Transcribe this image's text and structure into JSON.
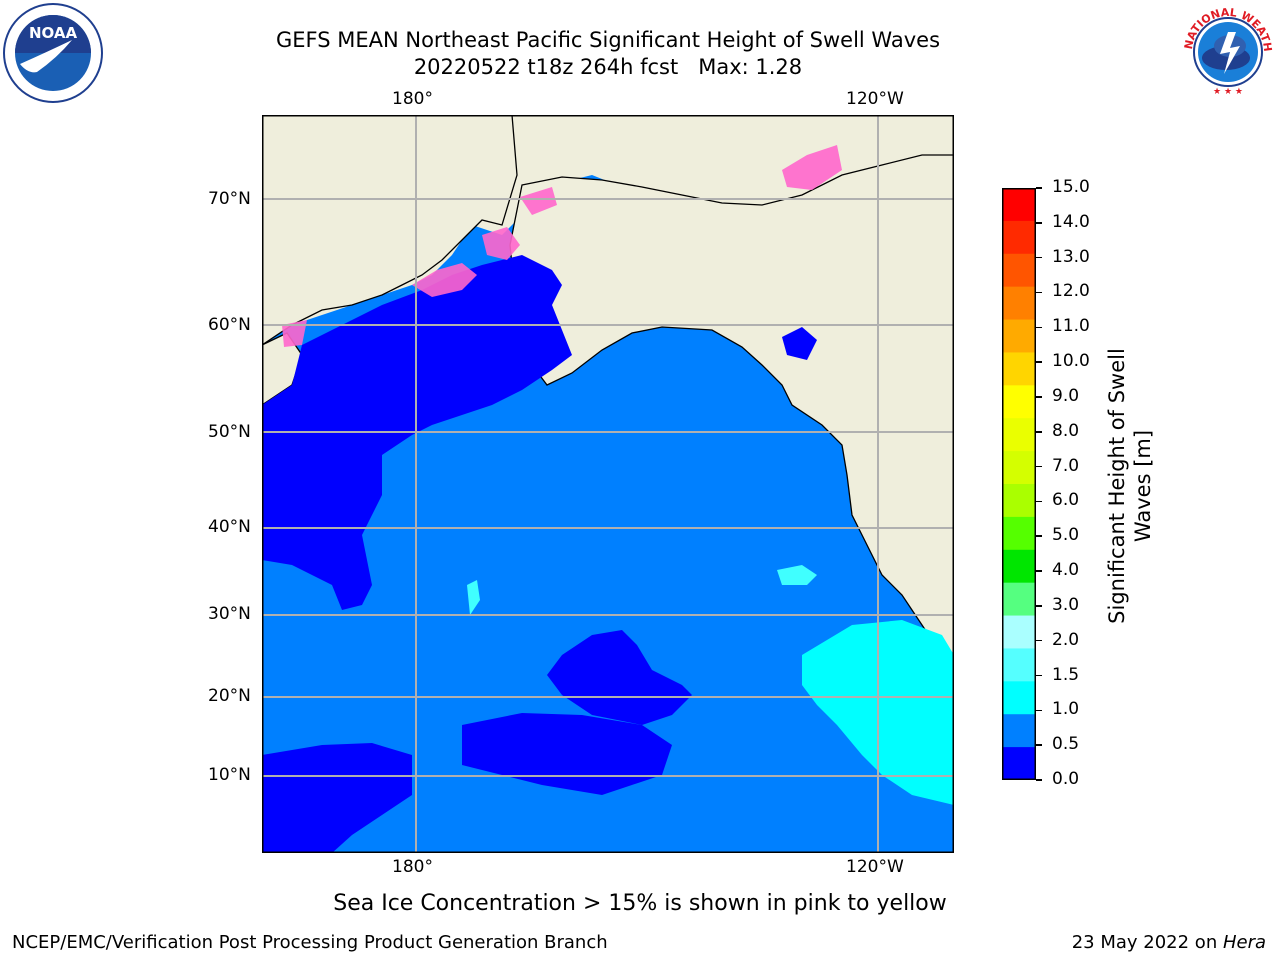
{
  "title": {
    "line1": "GEFS MEAN Northeast Pacific Significant Height of Swell Waves",
    "line2": "20220522 t18z 264h fcst   Max: 1.28"
  },
  "logos": {
    "left": {
      "name": "noaa-logo",
      "text": "NOAA"
    },
    "right": {
      "name": "national-weather-service-logo",
      "text": "NATIONAL WEATHER SERVICE"
    }
  },
  "map": {
    "lon_labels_top": [
      "180°",
      "120°W"
    ],
    "lon_labels_bottom": [
      "180°",
      "120°W"
    ],
    "lat_labels": [
      "70°N",
      "60°N",
      "50°N",
      "40°N",
      "30°N",
      "20°N",
      "10°N"
    ],
    "colors": {
      "land": "#efeedc",
      "swell_0_0.5": "#0000ff",
      "swell_0.5_1.0": "#0080ff",
      "swell_1.0_1.5": "#00ffff",
      "swell_1.5_2.0": "#40ffff",
      "ice": "#ff66cc",
      "grid": "#b0b0b0"
    },
    "note": "Sea Ice Concentration > 15% is shown in pink to yellow"
  },
  "colorbar": {
    "label_line1": "Significant Height of Swell",
    "label_line2": "Waves [m]",
    "ticks": [
      "15.0",
      "14.0",
      "13.0",
      "12.0",
      "11.0",
      "10.0",
      "9.0",
      "8.0",
      "7.0",
      "6.0",
      "5.0",
      "4.0",
      "3.0",
      "2.0",
      "1.5",
      "1.0",
      "0.5",
      "0.0"
    ],
    "colors_top_to_bottom": [
      "#ff0000",
      "#ff2a00",
      "#ff5500",
      "#ff8000",
      "#ffaa00",
      "#ffd500",
      "#ffff00",
      "#eaff00",
      "#d4ff00",
      "#aaff00",
      "#55ff00",
      "#00e600",
      "#55ff80",
      "#aaffff",
      "#55ffff",
      "#00ffff",
      "#0080ff",
      "#0000ff"
    ]
  },
  "footer": {
    "left": "NCEP/EMC/Verification Post Processing Product Generation Branch",
    "right_date": "23 May 2022 on ",
    "right_host": "Hera"
  }
}
